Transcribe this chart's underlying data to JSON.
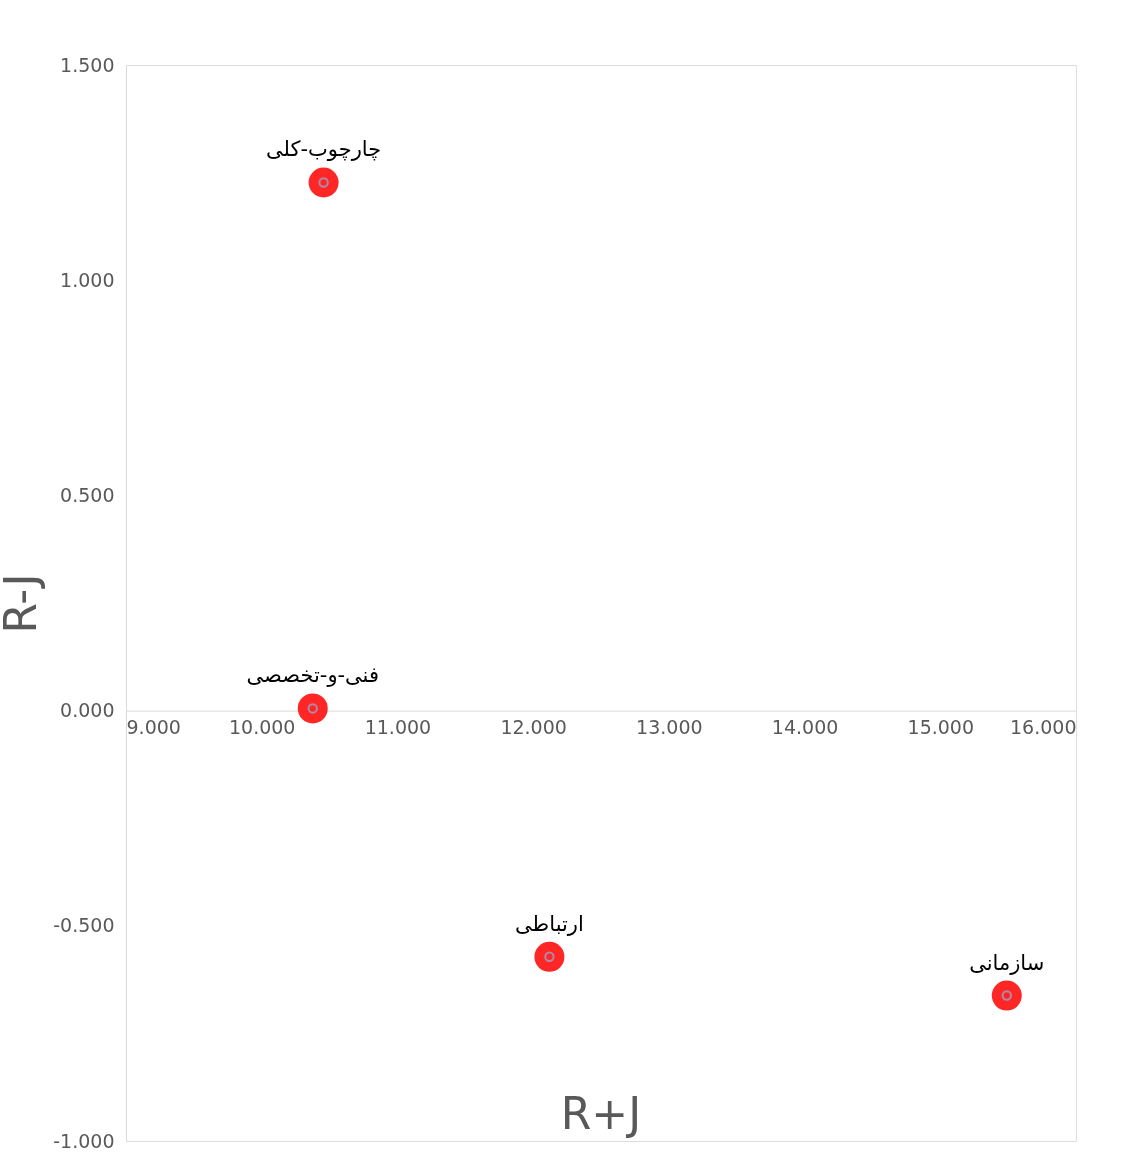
{
  "chart_data": {
    "type": "scatter",
    "xlabel": "R+J",
    "ylabel": "R-J",
    "x": [
      10.456,
      10.376,
      12.12,
      15.49
    ],
    "values": [
      1.227,
      0.005,
      -0.572,
      -0.662
    ],
    "color": "#ff0000",
    "marker": "circle",
    "grid": false,
    "xlim": [
      9,
      16
    ],
    "ylim": [
      -1,
      1.5
    ],
    "xticks": [
      {
        "value": 9,
        "label": "9.000"
      },
      {
        "value": 10,
        "label": "10.000"
      },
      {
        "value": 11,
        "label": "11.000"
      },
      {
        "value": 12,
        "label": "12.000"
      },
      {
        "value": 13,
        "label": "13.000"
      },
      {
        "value": 14,
        "label": "14.000"
      },
      {
        "value": 15,
        "label": "15.000"
      },
      {
        "value": 16,
        "label": "16.000"
      }
    ],
    "yticks": [
      {
        "value": -1,
        "label": "-1.000"
      },
      {
        "value": -0.5,
        "label": "-0.500"
      },
      {
        "value": 0,
        "label": "0.000"
      },
      {
        "value": 0.5,
        "label": "0.500"
      },
      {
        "value": 1,
        "label": "1.000"
      },
      {
        "value": 1.5,
        "label": "1.500"
      }
    ],
    "annotations": [
      {
        "text": "چارچوب-کلی",
        "x": 10.456,
        "y": 1.227
      },
      {
        "text": "فنی-و-تخصصی",
        "x": 10.376,
        "y": 0.005
      },
      {
        "text": "ارتباطی",
        "x": 12.12,
        "y": -0.572
      },
      {
        "text": "سازمانی",
        "x": 15.49,
        "y": -0.662
      }
    ]
  }
}
